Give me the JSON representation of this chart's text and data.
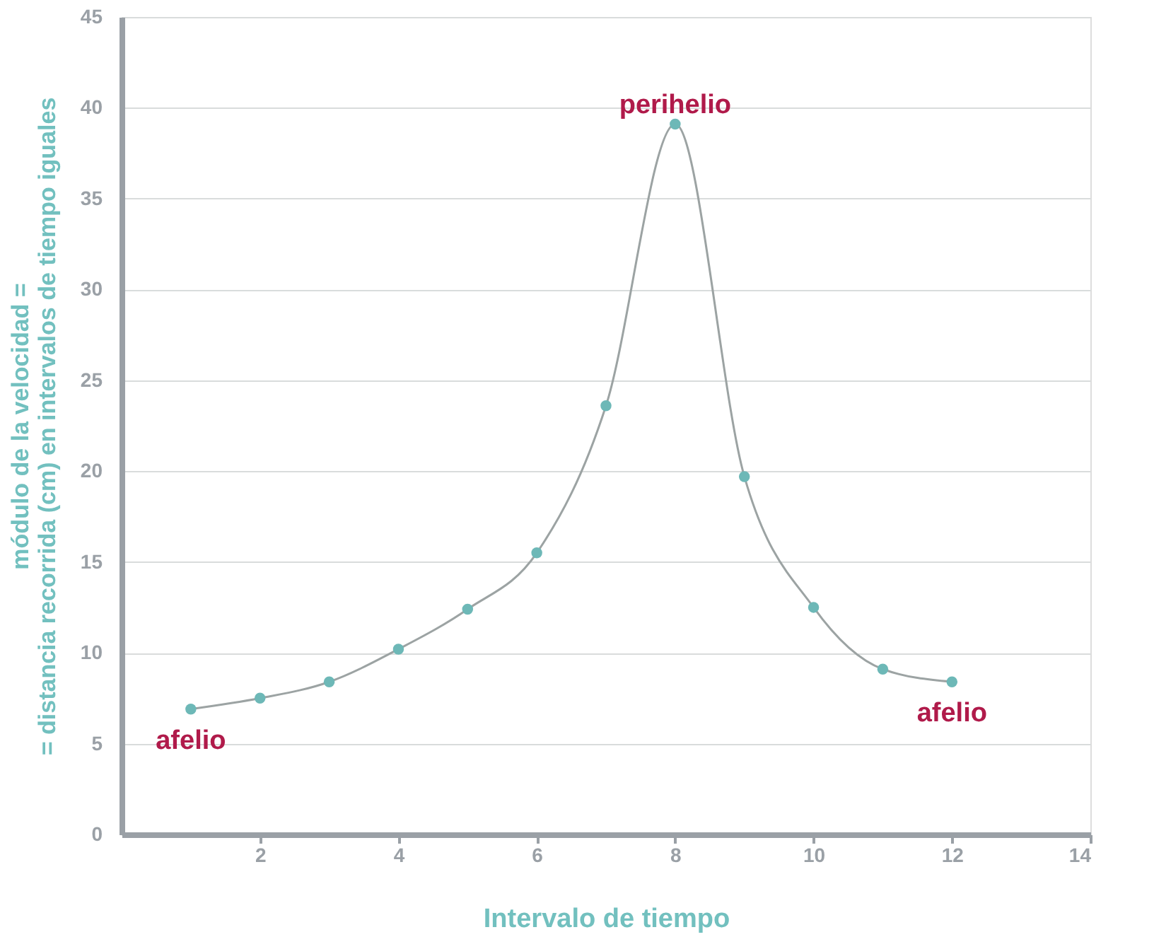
{
  "chart_data": {
    "type": "line",
    "xlabel": "Intervalo de tiempo",
    "ylabel": "módulo de la velocidad =\n= distancia recorrida (cm) en intervalos de tiempo iguales",
    "x": [
      1,
      2,
      3,
      4,
      5,
      6,
      7,
      8,
      9,
      10,
      11,
      12
    ],
    "series": [
      {
        "color": "#6db8b7",
        "values": [
          6.9,
          7.5,
          8.4,
          10.2,
          12.4,
          15.5,
          23.6,
          39.1,
          19.7,
          12.5,
          9.1,
          8.4
        ]
      }
    ],
    "xlim": [
      0,
      14
    ],
    "xticks": [
      2,
      4,
      6,
      8,
      10,
      12,
      14
    ],
    "ylim": [
      0,
      45
    ],
    "yticks": [
      0,
      5,
      10,
      15,
      20,
      25,
      30,
      35,
      40,
      45
    ],
    "grid": "y",
    "marker": "circle",
    "annotations": [
      {
        "text": "perihelio",
        "x": 8,
        "y": 39.1
      },
      {
        "text": "afelio",
        "x": 1,
        "y": 6.9
      },
      {
        "text": "afelio",
        "x": 12,
        "y": 8.4
      }
    ]
  }
}
